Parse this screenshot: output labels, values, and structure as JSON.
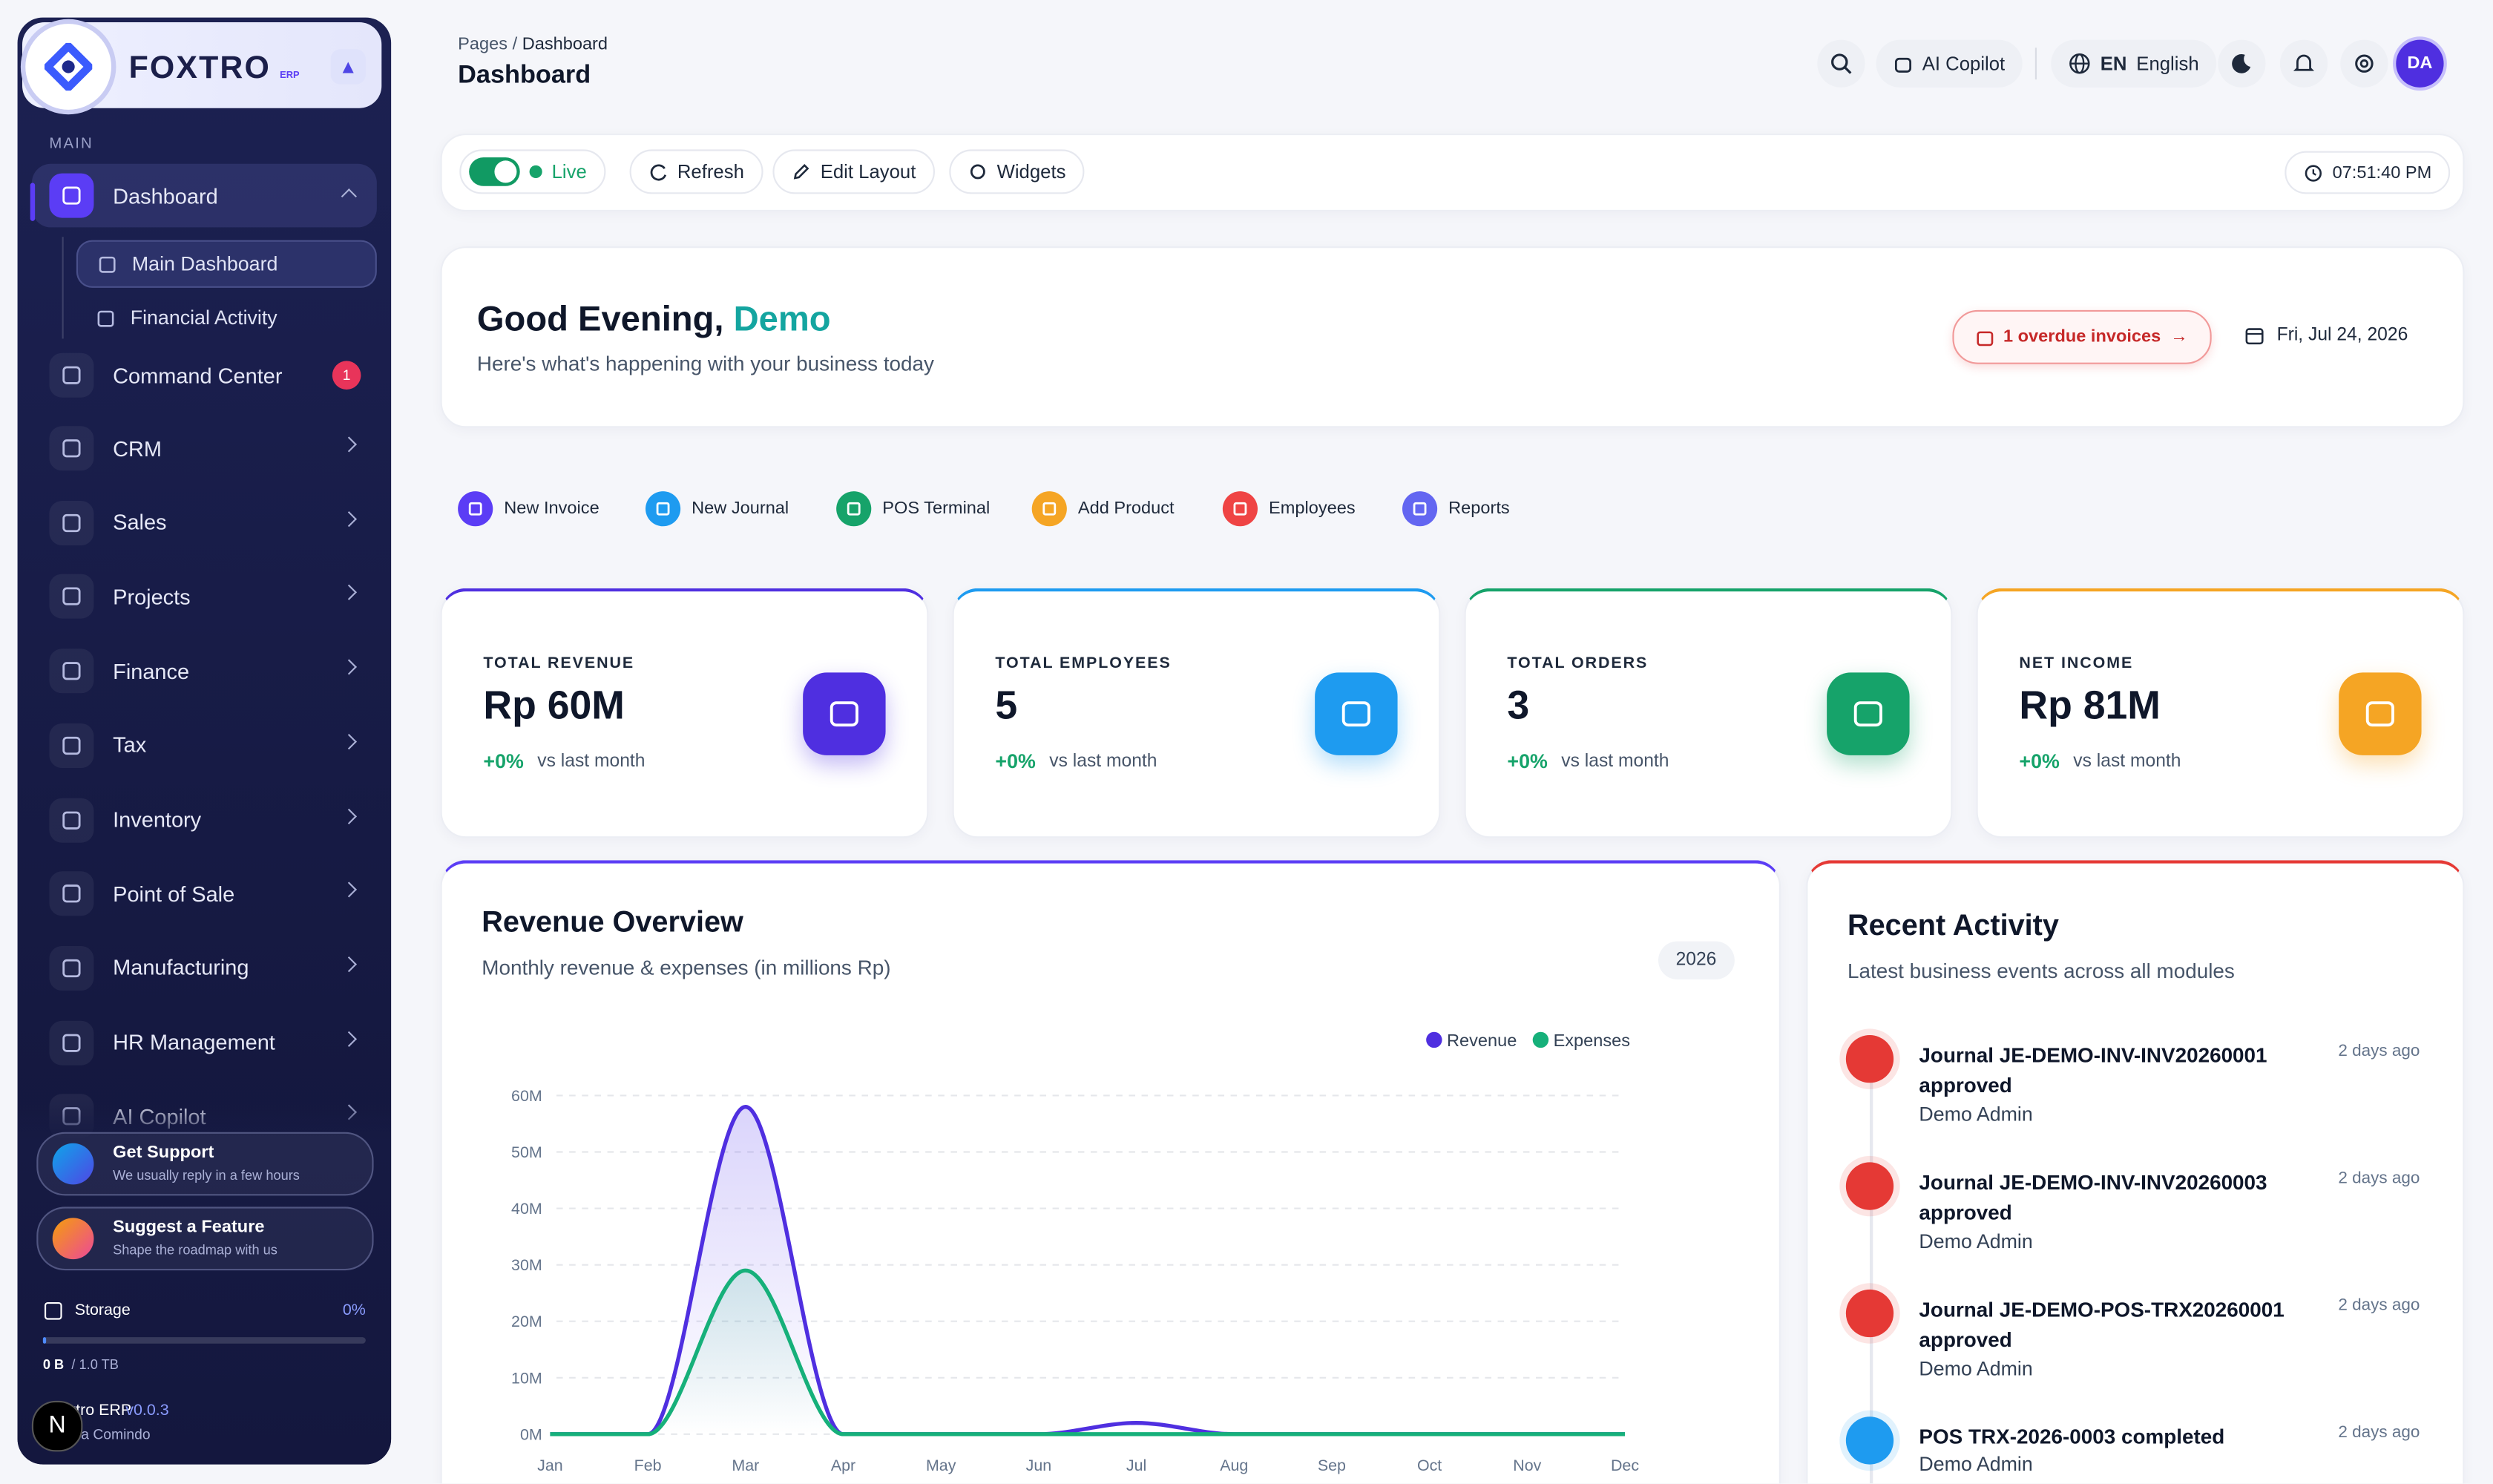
{
  "sidebar": {
    "brand": "FOXTRO",
    "brand_sub": "ERP",
    "section": "MAIN",
    "nav": [
      {
        "label": "Dashboard",
        "children": [
          "Main Dashboard",
          "Financial Activity"
        ]
      },
      {
        "label": "Command Center",
        "badge": "1"
      },
      {
        "label": "CRM"
      },
      {
        "label": "Sales"
      },
      {
        "label": "Projects"
      },
      {
        "label": "Finance"
      },
      {
        "label": "Tax"
      },
      {
        "label": "Inventory"
      },
      {
        "label": "Point of Sale"
      },
      {
        "label": "Manufacturing"
      },
      {
        "label": "HR Management"
      },
      {
        "label": "AI Copilot"
      }
    ],
    "support": [
      {
        "title": "Get Support",
        "subtitle": "We usually reply in a few hours"
      },
      {
        "title": "Suggest a Feature",
        "subtitle": "Shape the roadmap with us"
      }
    ],
    "storage": {
      "label": "Storage",
      "percent": "0%",
      "used": "0 B",
      "total": "/ 1.0 TB"
    },
    "footer": {
      "app": "Foxtro ERP",
      "version": "v0.0.3",
      "company": "a Comindo",
      "avatar": "N"
    }
  },
  "header": {
    "breadcrumb": [
      "Pages",
      "/",
      "Dashboard"
    ],
    "title": "Dashboard",
    "copilot": "AI Copilot",
    "lang_code": "EN",
    "lang": "English",
    "avatar": "DA"
  },
  "toolbar": {
    "live": "Live",
    "buttons": [
      "Refresh",
      "Edit Layout",
      "Widgets"
    ],
    "time": "07:51:40 PM"
  },
  "greeting": {
    "title": "Good Evening,",
    "name": "Demo",
    "subtitle": "Here's what's happening with your business today",
    "alert": "1 overdue invoices",
    "date": "Fri, Jul 24, 2026"
  },
  "quick_actions": [
    {
      "label": "New Invoice",
      "color": "#5b3df5"
    },
    {
      "label": "New Journal",
      "color": "#1e9bf0"
    },
    {
      "label": "POS Terminal",
      "color": "#16a36a"
    },
    {
      "label": "Add Product",
      "color": "#f5a524"
    },
    {
      "label": "Employees",
      "color": "#ef4444"
    },
    {
      "label": "Reports",
      "color": "#6366f1"
    }
  ],
  "kpis": [
    {
      "label": "TOTAL REVENUE",
      "value": "Rp 60M",
      "change": "+0%",
      "note": "vs last month",
      "color": "#4f2fe0"
    },
    {
      "label": "TOTAL EMPLOYEES",
      "value": "5",
      "change": "+0%",
      "note": "vs last month",
      "color": "#1e9bf0"
    },
    {
      "label": "TOTAL ORDERS",
      "value": "3",
      "change": "+0%",
      "note": "vs last month",
      "color": "#16a36a"
    },
    {
      "label": "NET INCOME",
      "value": "Rp 81M",
      "change": "+0%",
      "note": "vs last month",
      "color": "#f5a524"
    }
  ],
  "chart_data": {
    "type": "line",
    "title": "Revenue Overview",
    "subtitle": "Monthly revenue & expenses (in millions Rp)",
    "badge": "2026",
    "categories": [
      "Jan",
      "Feb",
      "Mar",
      "Apr",
      "May",
      "Jun",
      "Jul",
      "Aug",
      "Sep",
      "Oct",
      "Nov",
      "Dec"
    ],
    "series": [
      {
        "name": "Revenue",
        "color": "#4f2fe0",
        "values": [
          0,
          0,
          58,
          0,
          0,
          0,
          2,
          0,
          0,
          0,
          0,
          0
        ]
      },
      {
        "name": "Expenses",
        "color": "#16b07a",
        "values": [
          0,
          0,
          29,
          0,
          0,
          0,
          0,
          0,
          0,
          0,
          0,
          0
        ]
      }
    ],
    "ylim": [
      0,
      60
    ],
    "yticks": [
      {
        "value": 0,
        "label": "0M"
      },
      {
        "value": 10,
        "label": "10M"
      },
      {
        "value": 20,
        "label": "20M"
      },
      {
        "value": 30,
        "label": "30M"
      },
      {
        "value": 40,
        "label": "40M"
      },
      {
        "value": 50,
        "label": "50M"
      },
      {
        "value": 60,
        "label": "60M"
      }
    ],
    "grid": true,
    "legend": "top-right"
  },
  "activity": {
    "title": "Recent Activity",
    "subtitle": "Latest business events across all modules",
    "items": [
      {
        "title": "Journal JE-DEMO-INV-INV20260001 approved",
        "user": "Demo Admin",
        "time": "2 days ago",
        "color": "#e53935"
      },
      {
        "title": "Journal JE-DEMO-INV-INV20260003 approved",
        "user": "Demo Admin",
        "time": "2 days ago",
        "color": "#e53935"
      },
      {
        "title": "Journal JE-DEMO-POS-TRX20260001 approved",
        "user": "Demo Admin",
        "time": "2 days ago",
        "color": "#e53935"
      },
      {
        "title": "POS TRX-2026-0003 completed",
        "user": "Demo Admin",
        "time": "2 days ago",
        "color": "#1e9bf0"
      }
    ]
  }
}
